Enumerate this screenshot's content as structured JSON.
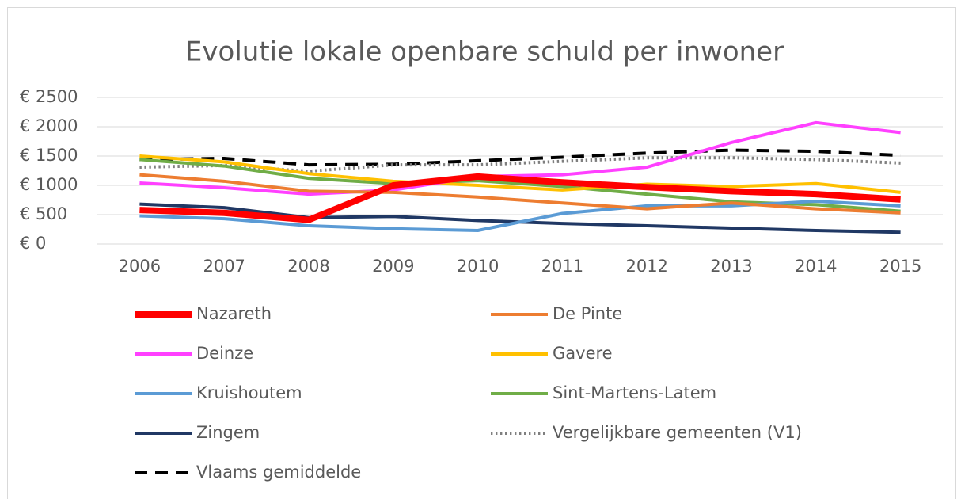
{
  "chart_data": {
    "type": "line",
    "title": "Evolutie lokale openbare schuld per inwoner",
    "categories": [
      "2006",
      "2007",
      "2008",
      "2009",
      "2010",
      "2011",
      "2012",
      "2013",
      "2014",
      "2015"
    ],
    "ylim": [
      0,
      2500
    ],
    "yticks": [
      {
        "value": 0,
        "label": "€ 0"
      },
      {
        "value": 500,
        "label": "€ 500"
      },
      {
        "value": 1000,
        "label": "€ 1000"
      },
      {
        "value": 1500,
        "label": "€ 1500"
      },
      {
        "value": 2000,
        "label": "€ 2000"
      },
      {
        "value": 2500,
        "label": "€ 2500"
      }
    ],
    "grid": true,
    "legend": "bottom",
    "series": [
      {
        "name": "Nazareth",
        "color": "#ff0000",
        "width": 8,
        "style": "solid",
        "values": [
          580,
          530,
          410,
          1000,
          1150,
          1050,
          970,
          900,
          850,
          760
        ]
      },
      {
        "name": "De Pinte",
        "color": "#ed7d31",
        "width": 4,
        "style": "solid",
        "values": [
          1180,
          1070,
          900,
          880,
          800,
          700,
          600,
          700,
          600,
          530
        ]
      },
      {
        "name": "Deinze",
        "color": "#ff40ff",
        "width": 4,
        "style": "solid",
        "values": [
          1040,
          960,
          850,
          920,
          1150,
          1180,
          1310,
          1730,
          2070,
          1900
        ]
      },
      {
        "name": "Gavere",
        "color": "#ffc000",
        "width": 4,
        "style": "solid",
        "values": [
          1500,
          1400,
          1200,
          1070,
          1000,
          920,
          1020,
          980,
          1030,
          880
        ]
      },
      {
        "name": "Kruishoutem",
        "color": "#5b9bd5",
        "width": 4,
        "style": "solid",
        "values": [
          480,
          430,
          310,
          260,
          230,
          520,
          650,
          650,
          730,
          650
        ]
      },
      {
        "name": "Sint-Martens-Latem",
        "color": "#70ad47",
        "width": 4,
        "style": "solid",
        "values": [
          1440,
          1330,
          1120,
          1030,
          1080,
          980,
          850,
          720,
          670,
          560
        ]
      },
      {
        "name": "Zingem",
        "color": "#203864",
        "width": 4,
        "style": "solid",
        "values": [
          680,
          620,
          450,
          470,
          400,
          350,
          310,
          270,
          230,
          200
        ]
      },
      {
        "name": "Vergelijkbare gemeenten (V1)",
        "color": "#7f7f7f",
        "width": 4,
        "style": "dotted",
        "values": [
          1310,
          1340,
          1240,
          1350,
          1350,
          1410,
          1470,
          1470,
          1440,
          1380
        ]
      },
      {
        "name": "Vlaams gemiddelde",
        "color": "#000000",
        "width": 4,
        "style": "dashed",
        "values": [
          1440,
          1460,
          1350,
          1360,
          1420,
          1480,
          1550,
          1600,
          1580,
          1510
        ]
      }
    ]
  }
}
